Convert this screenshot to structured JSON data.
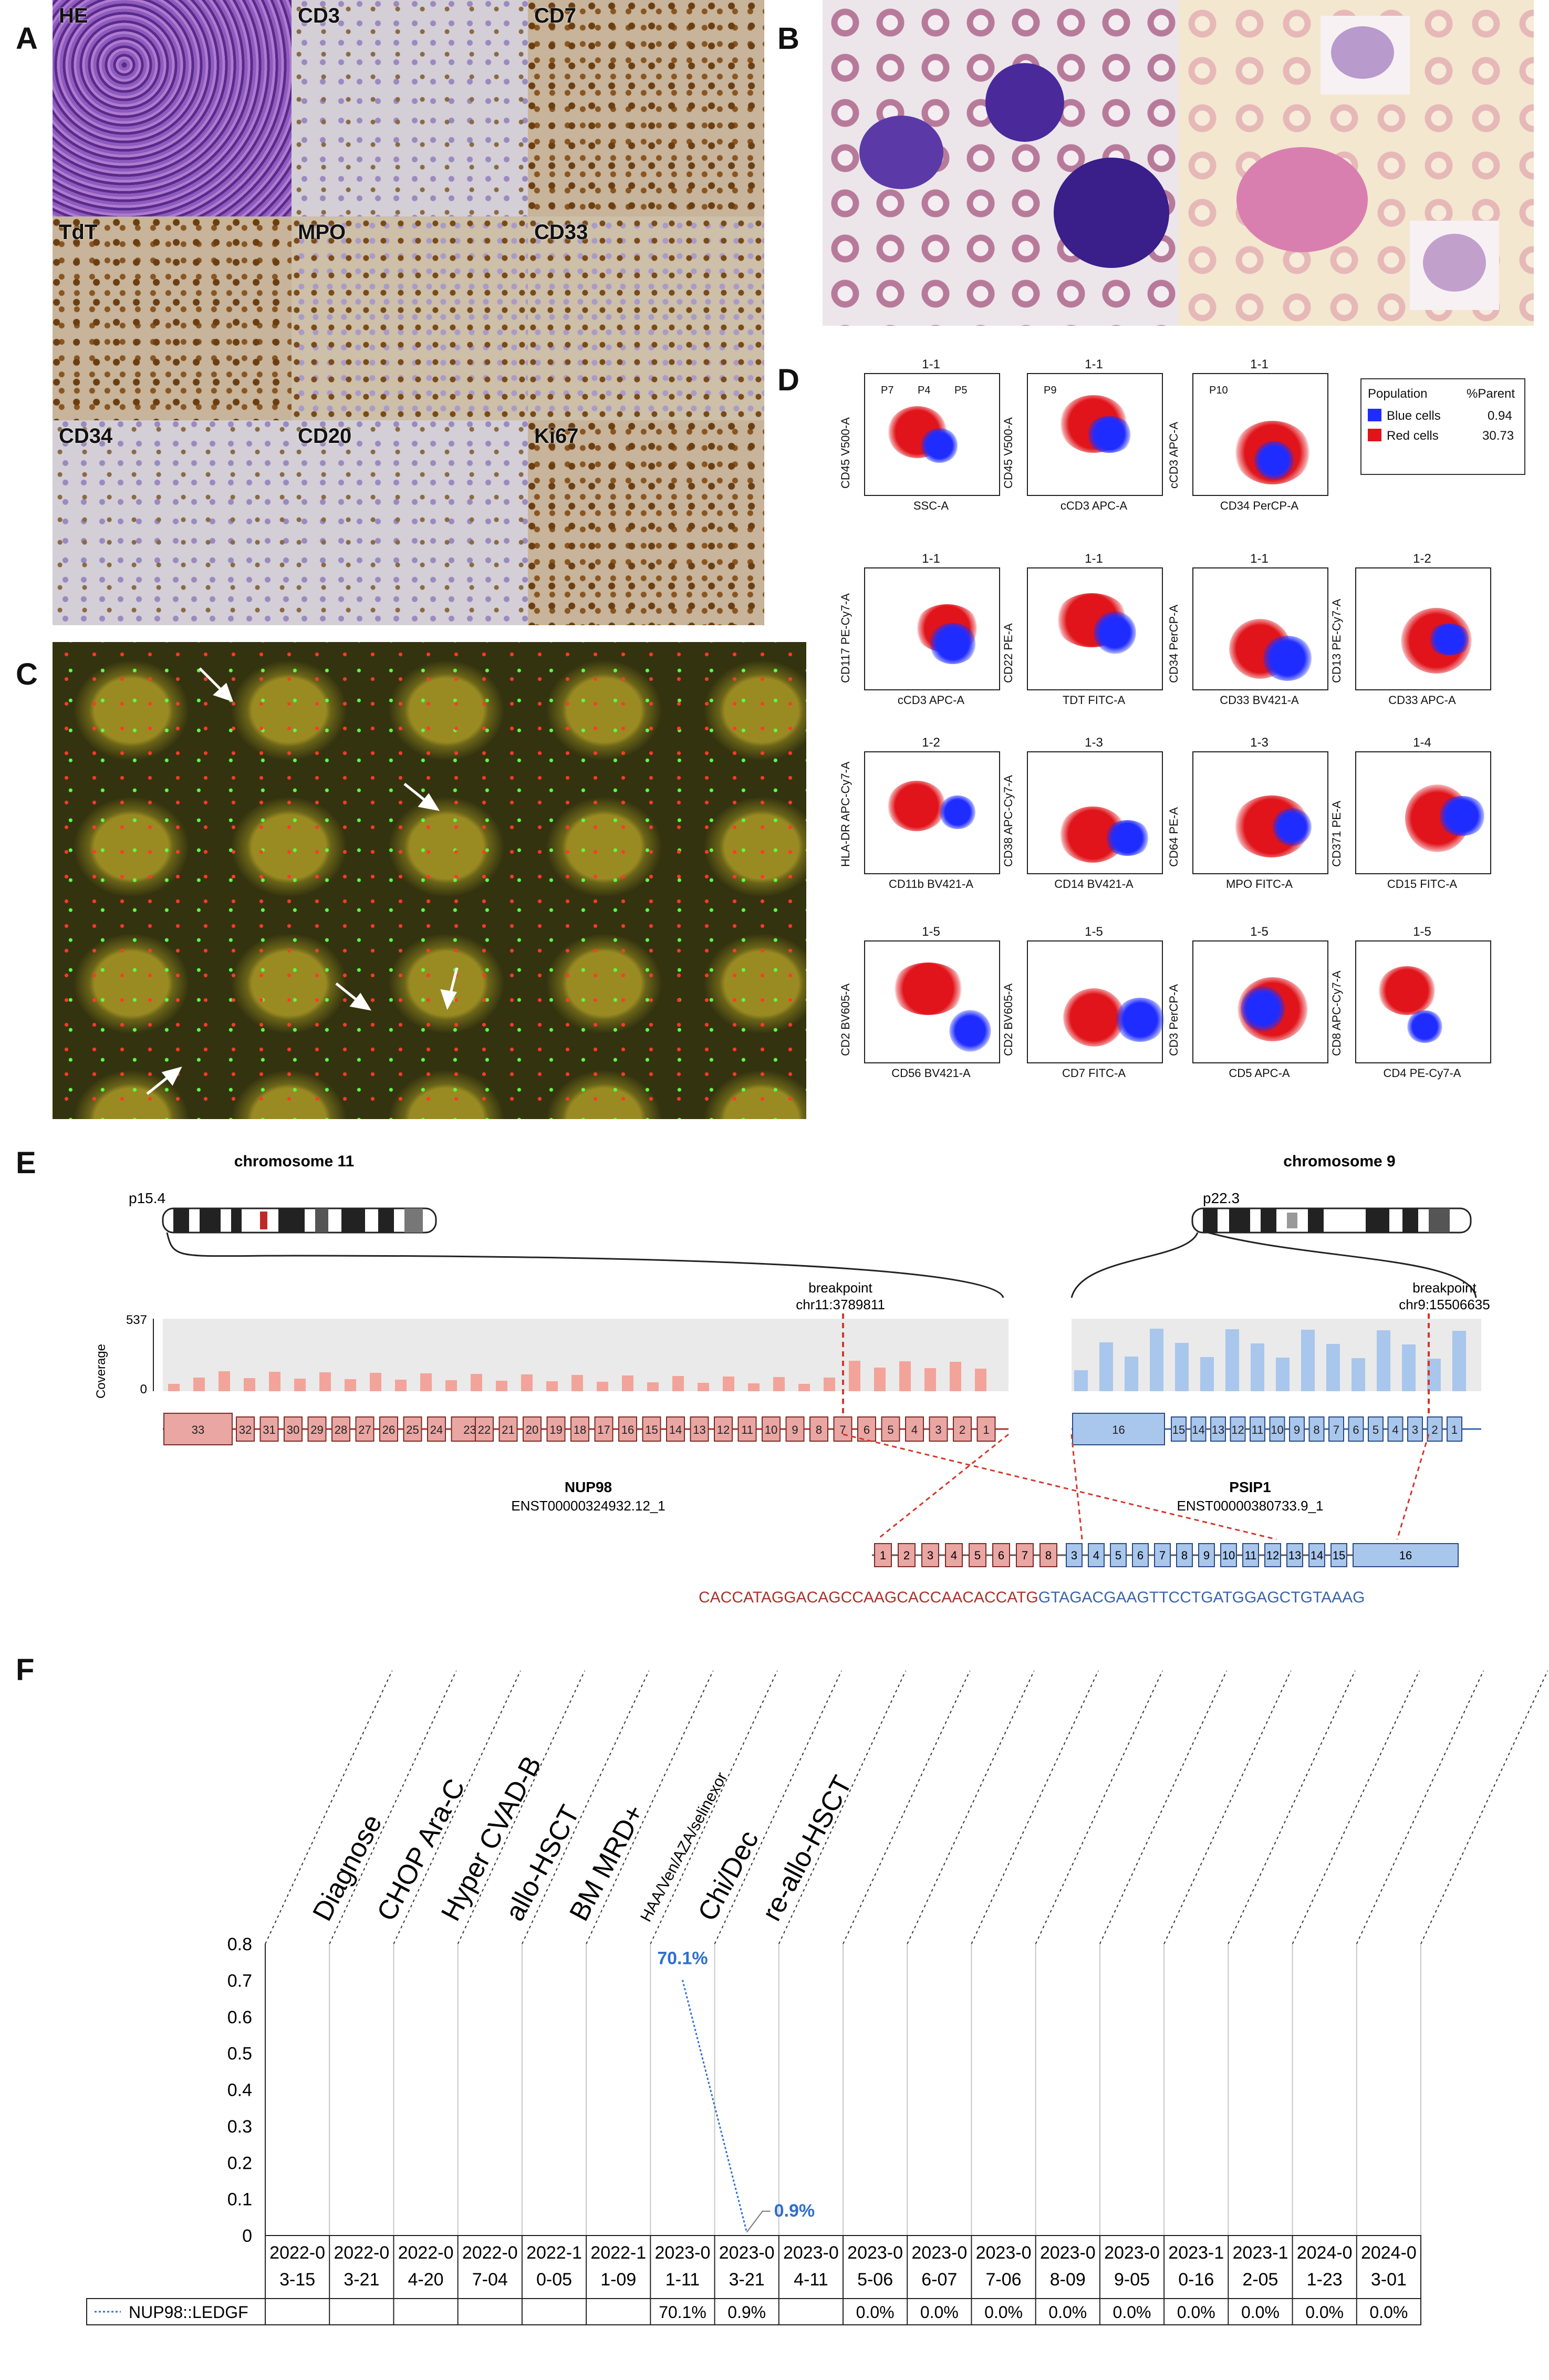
{
  "panels": {
    "a": {
      "letter": "A",
      "tiles": [
        "HE",
        "CD3",
        "CD7",
        "TdT",
        "MPO",
        "CD33",
        "CD34",
        "CD20",
        "Ki67"
      ]
    },
    "b": {
      "letter": "B"
    },
    "c": {
      "letter": "C"
    },
    "d": {
      "letter": "D",
      "legend": {
        "h1": "Population",
        "h2": "%Parent",
        "rows": [
          {
            "name": "Blue cells",
            "value": "0.94",
            "color": "#1f2cff"
          },
          {
            "name": "Red cells",
            "value": "30.73",
            "color": "#e0141a"
          }
        ]
      },
      "plots": [
        {
          "t": "1-1",
          "x": "SSC-A",
          "y": "CD45 V500-A",
          "gates": [
            "P7",
            "P4",
            "P5"
          ]
        },
        {
          "t": "1-1",
          "x": "cCD3 APC-A",
          "y": "CD45 V500-A",
          "gates": [
            "P9"
          ]
        },
        {
          "t": "1-1",
          "x": "CD34 PerCP-A",
          "y": "cCD3 APC-A",
          "gates": [
            "P10"
          ]
        },
        {
          "t": "1-1",
          "x": "cCD3 APC-A",
          "y": "CD117 PE-Cy7-A"
        },
        {
          "t": "1-1",
          "x": "TDT FITC-A",
          "y": "CD22 PE-A"
        },
        {
          "t": "1-1",
          "x": "CD33 BV421-A",
          "y": "CD34 PerCP-A"
        },
        {
          "t": "1-2",
          "x": "CD33 APC-A",
          "y": "CD13 PE-Cy7-A"
        },
        {
          "t": "1-2",
          "x": "CD11b BV421-A",
          "y": "HLA-DR APC-Cy7-A"
        },
        {
          "t": "1-3",
          "x": "CD14 BV421-A",
          "y": "CD38 APC-Cy7-A"
        },
        {
          "t": "1-3",
          "x": "MPO FITC-A",
          "y": "CD64 PE-A"
        },
        {
          "t": "1-4",
          "x": "CD15 FITC-A",
          "y": "CD371 PE-A"
        },
        {
          "t": "1-5",
          "x": "CD56 BV421-A",
          "y": "CD2 BV605-A"
        },
        {
          "t": "1-5",
          "x": "CD7 FITC-A",
          "y": "CD2 BV605-A"
        },
        {
          "t": "1-5",
          "x": "CD5 APC-A",
          "y": "CD3 PerCP-A"
        },
        {
          "t": "1-5",
          "x": "CD4 PE-Cy7-A",
          "y": "CD8 APC-Cy7-A"
        }
      ]
    },
    "e": {
      "letter": "E",
      "chr11": {
        "title": "chromosome 11",
        "band": "p15.4",
        "bp_label": "breakpoint",
        "bp_pos": "chr11:3789811"
      },
      "chr9": {
        "title": "chromosome 9",
        "band": "p22.3",
        "bp_label": "breakpoint",
        "bp_pos": "chr9:15506635"
      },
      "coverage_label": "Coverage",
      "coverage_ticks": [
        "537",
        "0"
      ],
      "gene1": {
        "name": "NUP98",
        "transcript": "ENST00000324932.12_1",
        "exons": [
          "33",
          "32",
          "31",
          "30",
          "29",
          "28",
          "27",
          "26",
          "25",
          "24",
          "23",
          "22",
          "21",
          "20",
          "19",
          "18",
          "17",
          "16",
          "15",
          "14",
          "13",
          "12",
          "11",
          "10",
          "9",
          "8",
          "7",
          "6",
          "5",
          "4",
          "3",
          "2",
          "1"
        ]
      },
      "gene2": {
        "name": "PSIP1",
        "transcript": "ENST00000380733.9_1",
        "exons": [
          "16",
          "15",
          "14",
          "13",
          "12",
          "11",
          "10",
          "9",
          "8",
          "7",
          "6",
          "5",
          "4",
          "3",
          "2",
          "1"
        ]
      },
      "fusion_exons_red": [
        "1",
        "2",
        "3",
        "4",
        "5",
        "6",
        "7",
        "8"
      ],
      "fusion_exons_blue": [
        "3",
        "4",
        "5",
        "6",
        "7",
        "8",
        "9",
        "10",
        "11",
        "12",
        "13",
        "14",
        "15",
        "16"
      ],
      "seq_red": "CACCATAGGACAGCCAAGCACCAACACCATG",
      "seq_blue": "GTAGACGAAGTTCCTGATGGAGCTGTAAAG"
    },
    "f": {
      "letter": "F",
      "events": [
        "Diagnose",
        "CHOP Ara-C",
        "Hyper  CVAD-B",
        "allo-HSCT",
        "BM MRD+",
        "HAA/Ven/AZA/selinexor",
        "Chi/Dec",
        "re-allo-HSCT"
      ],
      "series_name": "NUP98::LEDGF",
      "chart_data": {
        "type": "line",
        "categories": [
          "2022-03-15",
          "2022-03-21",
          "2022-04-20",
          "2022-07-04",
          "2022-10-05",
          "2022-11-09",
          "2023-01-11",
          "2023-03-21",
          "2023-04-11",
          "2023-05-06",
          "2023-06-07",
          "2023-07-06",
          "2023-08-09",
          "2023-09-05",
          "2023-10-16",
          "2023-12-05",
          "2024-01-23",
          "2024-03-01"
        ],
        "category_lines": [
          [
            "2022-0",
            "3-15"
          ],
          [
            "2022-0",
            "3-21"
          ],
          [
            "2022-0",
            "4-20"
          ],
          [
            "2022-0",
            "7-04"
          ],
          [
            "2022-1",
            "0-05"
          ],
          [
            "2022-1",
            "1-09"
          ],
          [
            "2023-0",
            "1-11"
          ],
          [
            "2023-0",
            "3-21"
          ],
          [
            "2023-0",
            "4-11"
          ],
          [
            "2023-0",
            "5-06"
          ],
          [
            "2023-0",
            "6-07"
          ],
          [
            "2023-0",
            "7-06"
          ],
          [
            "2023-0",
            "8-09"
          ],
          [
            "2023-0",
            "9-05"
          ],
          [
            "2023-1",
            "0-16"
          ],
          [
            "2023-1",
            "2-05"
          ],
          [
            "2024-0",
            "1-23"
          ],
          [
            "2024-0",
            "3-01"
          ]
        ],
        "series": [
          {
            "name": "NUP98::LEDGF",
            "values": [
              null,
              null,
              null,
              null,
              null,
              null,
              0.701,
              0.009,
              null,
              0,
              0,
              0,
              0,
              0,
              0,
              0,
              0,
              0
            ],
            "table": [
              "",
              "",
              "",
              "",
              "",
              "",
              "70.1%",
              "0.9%",
              "",
              "0.0%",
              "0.0%",
              "0.0%",
              "0.0%",
              "0.0%",
              "0.0%",
              "0.0%",
              "0.0%",
              "0.0%"
            ]
          }
        ],
        "point_labels": [
          {
            "index": 6,
            "text": "70.1%"
          },
          {
            "index": 7,
            "text": "0.9%"
          }
        ],
        "yticks": [
          "0",
          "0.1",
          "0.2",
          "0.3",
          "0.4",
          "0.5",
          "0.6",
          "0.7",
          "0.8"
        ],
        "ylim": [
          0,
          0.8
        ],
        "line_color": "#2f6fd0"
      }
    }
  }
}
